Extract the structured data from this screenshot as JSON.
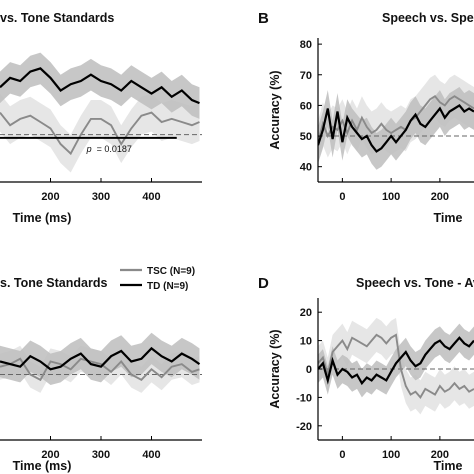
{
  "chart_data": [
    {
      "type": "line",
      "panel": "",
      "title": "vs. Tone Standards",
      "xlabel": "Time (ms)",
      "ylabel": "",
      "x_ticks": [
        200,
        300,
        400
      ],
      "y_ticks": [],
      "xlim": [
        100,
        500
      ],
      "ylim": [
        35,
        80
      ],
      "chance_level": 50,
      "annotation": {
        "label": "p",
        "value": "= 0.0187",
        "x_range": [
          100,
          450
        ],
        "y": 49
      },
      "series": [
        {
          "name": "",
          "color": "#000000",
          "band_color": "#bdbdbd",
          "x": [
            100,
            120,
            140,
            160,
            180,
            200,
            220,
            240,
            260,
            280,
            300,
            320,
            340,
            360,
            380,
            400,
            420,
            440,
            460,
            480,
            495
          ],
          "y": [
            65,
            68,
            67,
            70,
            71,
            68,
            64,
            66,
            67,
            69,
            67,
            66,
            64,
            67,
            65,
            63,
            65,
            62,
            64,
            61,
            60
          ],
          "band": 5
        },
        {
          "name": "",
          "color": "#8a8a8a",
          "band_color": "#e2e2e2",
          "x": [
            100,
            120,
            140,
            160,
            180,
            200,
            220,
            240,
            260,
            280,
            300,
            320,
            340,
            360,
            380,
            400,
            420,
            440,
            460,
            480,
            495
          ],
          "y": [
            57,
            53,
            55,
            56,
            54,
            52,
            47,
            44,
            50,
            55,
            55,
            53,
            47,
            52,
            56,
            57,
            54,
            55,
            54,
            53,
            54
          ],
          "band": 6
        }
      ]
    },
    {
      "type": "line",
      "panel": "B",
      "title": "Speech vs. Spe",
      "xlabel": "Time",
      "ylabel": "Accuracy (%)",
      "x_ticks": [
        0,
        100,
        200
      ],
      "x_tick_labels": [
        "0",
        "100",
        "200"
      ],
      "y_ticks": [
        40,
        50,
        60,
        70,
        80
      ],
      "xlim": [
        -50,
        270
      ],
      "ylim": [
        35,
        82
      ],
      "chance_level": 50,
      "series": [
        {
          "name": "",
          "color": "#000000",
          "band_color": "#bdbdbd",
          "x": [
            -50,
            -40,
            -30,
            -20,
            -10,
            0,
            10,
            20,
            30,
            40,
            50,
            60,
            70,
            80,
            90,
            100,
            110,
            120,
            130,
            140,
            150,
            160,
            170,
            180,
            190,
            200,
            210,
            220,
            230,
            240,
            250,
            260,
            270
          ],
          "y": [
            47,
            52,
            59,
            49,
            58,
            48,
            56,
            53,
            51,
            49,
            50,
            47,
            45,
            46,
            48,
            50,
            48,
            50,
            52,
            55,
            57,
            54,
            53,
            55,
            57,
            59,
            56,
            58,
            59,
            60,
            58,
            59,
            58
          ],
          "band": 6
        },
        {
          "name": "",
          "color": "#8a8a8a",
          "band_color": "#e2e2e2",
          "x": [
            -50,
            -40,
            -30,
            -20,
            -10,
            0,
            10,
            20,
            30,
            40,
            50,
            60,
            70,
            80,
            90,
            100,
            110,
            120,
            130,
            140,
            150,
            160,
            170,
            180,
            190,
            200,
            210,
            220,
            230,
            240,
            250,
            260,
            270
          ],
          "y": [
            48,
            54,
            50,
            53,
            52,
            55,
            51,
            55,
            52,
            56,
            53,
            51,
            52,
            54,
            52,
            51,
            52,
            53,
            52,
            55,
            56,
            58,
            60,
            62,
            63,
            61,
            60,
            62,
            63,
            62,
            61,
            60,
            59
          ],
          "band": 7
        }
      ]
    },
    {
      "type": "line",
      "panel": "",
      "title": "s. Tone Standards",
      "xlabel": "Time (ms)",
      "ylabel": "",
      "x_ticks": [
        200,
        300,
        400
      ],
      "y_ticks": [],
      "xlim": [
        100,
        500
      ],
      "ylim": [
        25,
        80
      ],
      "chance_level": 50,
      "legend": {
        "placement": "top-right",
        "entries": [
          "TSC (N=9)",
          "TD (N=9)"
        ]
      },
      "series": [
        {
          "name": "TSC (N=9)",
          "color": "#8a8a8a",
          "band_color": "#e2e2e2",
          "x": [
            100,
            120,
            140,
            160,
            180,
            200,
            220,
            240,
            260,
            280,
            300,
            320,
            340,
            360,
            380,
            400,
            420,
            440,
            460,
            480,
            495
          ],
          "y": [
            53,
            54,
            56,
            50,
            48,
            55,
            54,
            52,
            56,
            55,
            54,
            51,
            55,
            50,
            48,
            52,
            49,
            53,
            54,
            51,
            52
          ],
          "band": 5
        },
        {
          "name": "TD (N=9)",
          "color": "#000000",
          "band_color": "#bdbdbd",
          "x": [
            100,
            120,
            140,
            160,
            180,
            200,
            220,
            240,
            260,
            280,
            300,
            320,
            340,
            360,
            380,
            400,
            420,
            440,
            460,
            480,
            495
          ],
          "y": [
            55,
            54,
            53,
            57,
            55,
            52,
            53,
            56,
            58,
            54,
            53,
            57,
            59,
            55,
            56,
            60,
            57,
            55,
            58,
            56,
            54
          ],
          "band": 6
        }
      ]
    },
    {
      "type": "line",
      "panel": "D",
      "title": "Speech vs. Tone - Avera",
      "xlabel": "Time",
      "ylabel": "Accuracy (%)",
      "x_ticks": [
        0,
        100,
        200
      ],
      "x_tick_labels": [
        "0",
        "100",
        "200"
      ],
      "y_ticks": [
        -20,
        -10,
        0,
        10,
        20
      ],
      "xlim": [
        -50,
        270
      ],
      "ylim": [
        -25,
        25
      ],
      "chance_level": 0,
      "series": [
        {
          "name": "",
          "color": "#000000",
          "band_color": "#bdbdbd",
          "x": [
            -50,
            -40,
            -30,
            -20,
            -10,
            0,
            10,
            20,
            30,
            40,
            50,
            60,
            70,
            80,
            90,
            100,
            110,
            120,
            130,
            140,
            150,
            160,
            170,
            180,
            190,
            200,
            210,
            220,
            230,
            240,
            250,
            260,
            270
          ],
          "y": [
            0,
            2,
            -4,
            3,
            -2,
            0,
            -1,
            -3,
            -2,
            -5,
            -3,
            -4,
            -2,
            -3,
            -4,
            -1,
            2,
            4,
            6,
            3,
            1,
            2,
            5,
            7,
            9,
            10,
            8,
            7,
            9,
            11,
            9,
            8,
            10
          ],
          "band": 5
        },
        {
          "name": "",
          "color": "#8a8a8a",
          "band_color": "#e2e2e2",
          "x": [
            -50,
            -40,
            -30,
            -20,
            -10,
            0,
            10,
            20,
            30,
            40,
            50,
            60,
            70,
            80,
            90,
            100,
            110,
            120,
            130,
            140,
            150,
            160,
            170,
            180,
            190,
            200,
            210,
            220,
            230,
            240,
            250,
            260,
            270
          ],
          "y": [
            2,
            4,
            -2,
            6,
            8,
            10,
            7,
            11,
            10,
            9,
            8,
            10,
            12,
            11,
            9,
            11,
            12,
            0,
            -6,
            -9,
            -8,
            -10,
            -7,
            -8,
            -9,
            -6,
            -8,
            -7,
            -5,
            -7,
            -6,
            -8,
            -7
          ],
          "band": 6
        }
      ]
    }
  ]
}
